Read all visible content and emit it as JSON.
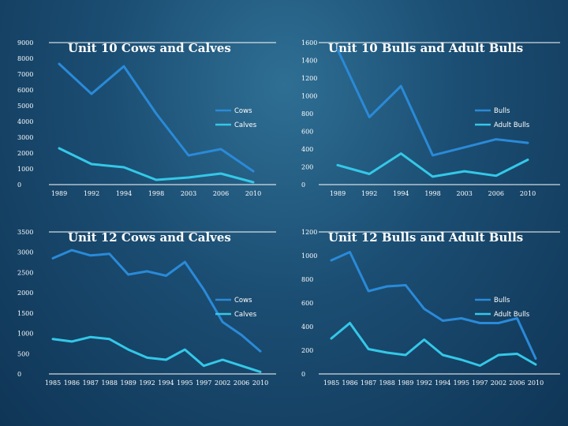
{
  "colors": {
    "primary_series": "#2a8ad8",
    "secondary_series": "#34c8e8",
    "axis": "#ffffff",
    "text": "#ffffff"
  },
  "chart_data": [
    {
      "type": "line",
      "title": "Unit 10 Cows and Calves",
      "categories": [
        "1989",
        "1992",
        "1994",
        "1998",
        "2003",
        "2006",
        "2010"
      ],
      "ylim": [
        0,
        9000
      ],
      "yticks": [
        "0",
        "1000",
        "2000",
        "3000",
        "4000",
        "5000",
        "6000",
        "7000",
        "8000",
        "9000"
      ],
      "series": [
        {
          "name": "Cows",
          "values": [
            7650,
            5750,
            7500,
            4500,
            1850,
            2250,
            850
          ]
        },
        {
          "name": "Calves",
          "values": [
            2300,
            1300,
            1100,
            300,
            450,
            700,
            150
          ]
        }
      ],
      "legend": "right"
    },
    {
      "type": "line",
      "title": "Unit 10 Bulls and Adult Bulls",
      "categories": [
        "1989",
        "1992",
        "1994",
        "1998",
        "2003",
        "2006",
        "2010"
      ],
      "ylim": [
        0,
        1600
      ],
      "yticks": [
        "0",
        "200",
        "400",
        "600",
        "800",
        "1000",
        "1200",
        "1400",
        "1600"
      ],
      "series": [
        {
          "name": "Bulls",
          "values": [
            1520,
            760,
            1110,
            330,
            420,
            510,
            470
          ]
        },
        {
          "name": "Adult Bulls",
          "values": [
            220,
            120,
            350,
            90,
            150,
            100,
            280
          ]
        }
      ],
      "legend": "right"
    },
    {
      "type": "line",
      "title": "Unit 12 Cows and Calves",
      "categories": [
        "1985",
        "1986",
        "1987",
        "1988",
        "1989",
        "1992",
        "1994",
        "1995",
        "1997",
        "2002",
        "2006",
        "2010"
      ],
      "ylim": [
        0,
        3500
      ],
      "yticks": [
        "0",
        "500",
        "1000",
        "1500",
        "2000",
        "2500",
        "3000",
        "3500"
      ],
      "series": [
        {
          "name": "Cows",
          "values": [
            2850,
            3050,
            2920,
            2960,
            2450,
            2530,
            2420,
            2760,
            2080,
            1280,
            960,
            560
          ]
        },
        {
          "name": "Calves",
          "values": [
            860,
            800,
            910,
            860,
            600,
            400,
            350,
            600,
            200,
            350,
            200,
            50
          ]
        }
      ],
      "legend": "right"
    },
    {
      "type": "line",
      "title": "Unit 12 Bulls and Adult Bulls",
      "categories": [
        "1985",
        "1986",
        "1987",
        "1988",
        "1989",
        "1992",
        "1994",
        "1995",
        "1997",
        "2002",
        "2006",
        "2010"
      ],
      "ylim": [
        0,
        1200
      ],
      "yticks": [
        "0",
        "200",
        "400",
        "600",
        "800",
        "1000",
        "1200"
      ],
      "series": [
        {
          "name": "Bulls",
          "values": [
            960,
            1030,
            700,
            740,
            750,
            550,
            450,
            470,
            430,
            430,
            470,
            130
          ]
        },
        {
          "name": "Adult Bulls",
          "values": [
            300,
            430,
            210,
            180,
            160,
            290,
            160,
            120,
            70,
            160,
            170,
            80
          ]
        }
      ],
      "legend": "right"
    }
  ]
}
